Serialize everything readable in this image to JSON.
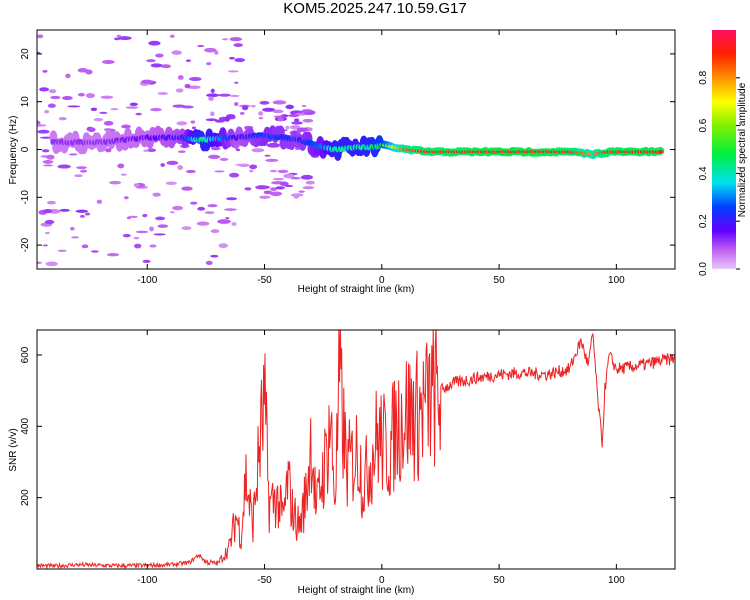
{
  "title": "KOM5.2025.247.10.59.G17",
  "chart_data": [
    {
      "type": "heatmap",
      "title": "KOM5.2025.247.10.59.G17",
      "xlabel": "Height of straight line (km)",
      "ylabel": "Frequency (Hz)",
      "xlim": [
        -147,
        125
      ],
      "ylim": [
        -25,
        25
      ],
      "xticks": [
        -100,
        -50,
        0,
        50,
        100
      ],
      "yticks": [
        -20,
        -10,
        0,
        10,
        20
      ],
      "colorbar": {
        "label": "Normalized spectral amplitude",
        "range": [
          0,
          1
        ],
        "ticks": [
          0.0,
          0.2,
          0.4,
          0.6,
          0.8
        ]
      },
      "description_points": {
        "x": [
          -140,
          -120,
          -100,
          -85,
          -77,
          -62,
          -50,
          -35,
          -25,
          -20,
          -10,
          -3,
          0,
          5,
          10,
          20,
          35,
          50,
          65,
          80,
          90,
          97,
          110,
          120
        ],
        "freq": [
          1.5,
          1.5,
          2.5,
          2.5,
          2.0,
          2.5,
          3.0,
          2.0,
          0.5,
          0.0,
          0.5,
          0.5,
          1.0,
          0.5,
          0.0,
          -0.5,
          -0.5,
          -0.5,
          -0.5,
          -0.5,
          -1.0,
          -0.5,
          -0.5,
          -0.5
        ],
        "amplitude": [
          0.12,
          0.12,
          0.15,
          0.2,
          0.45,
          0.18,
          0.25,
          0.22,
          0.3,
          0.42,
          0.4,
          0.45,
          0.5,
          0.7,
          0.85,
          0.9,
          0.92,
          0.95,
          0.95,
          0.9,
          0.8,
          0.9,
          0.95,
          0.9
        ]
      }
    },
    {
      "type": "line",
      "xlabel": "Height of straight line (km)",
      "ylabel": "SNR (v/v)",
      "xlim": [
        -147,
        125
      ],
      "ylim": [
        0,
        670
      ],
      "xticks": [
        -100,
        -50,
        0,
        50,
        100
      ],
      "yticks": [
        200,
        400,
        600
      ],
      "color": "#ee2222",
      "series": [
        {
          "name": "SNR",
          "x": [
            -147,
            -140,
            -130,
            -120,
            -110,
            -100,
            -90,
            -82,
            -78,
            -75,
            -70,
            -65,
            -62,
            -60,
            -58,
            -55,
            -52,
            -50,
            -48,
            -45,
            -42,
            -40,
            -38,
            -35,
            -32,
            -30,
            -28,
            -26,
            -24,
            -22,
            -20,
            -18,
            -15,
            -12,
            -10,
            -8,
            -5,
            -2,
            0,
            3,
            6,
            10,
            15,
            20,
            25,
            30,
            40,
            50,
            60,
            70,
            80,
            85,
            88,
            90,
            92,
            94,
            95,
            97,
            100,
            110,
            120,
            125
          ],
          "y": [
            10,
            8,
            12,
            10,
            9,
            10,
            12,
            18,
            40,
            20,
            15,
            60,
            150,
            90,
            260,
            120,
            350,
            460,
            180,
            200,
            140,
            250,
            160,
            120,
            220,
            380,
            160,
            240,
            300,
            420,
            200,
            520,
            280,
            310,
            340,
            230,
            300,
            370,
            360,
            320,
            400,
            440,
            430,
            470,
            500,
            520,
            535,
            545,
            550,
            545,
            560,
            640,
            570,
            660,
            480,
            350,
            500,
            600,
            560,
            570,
            585,
            590
          ]
        }
      ]
    }
  ]
}
